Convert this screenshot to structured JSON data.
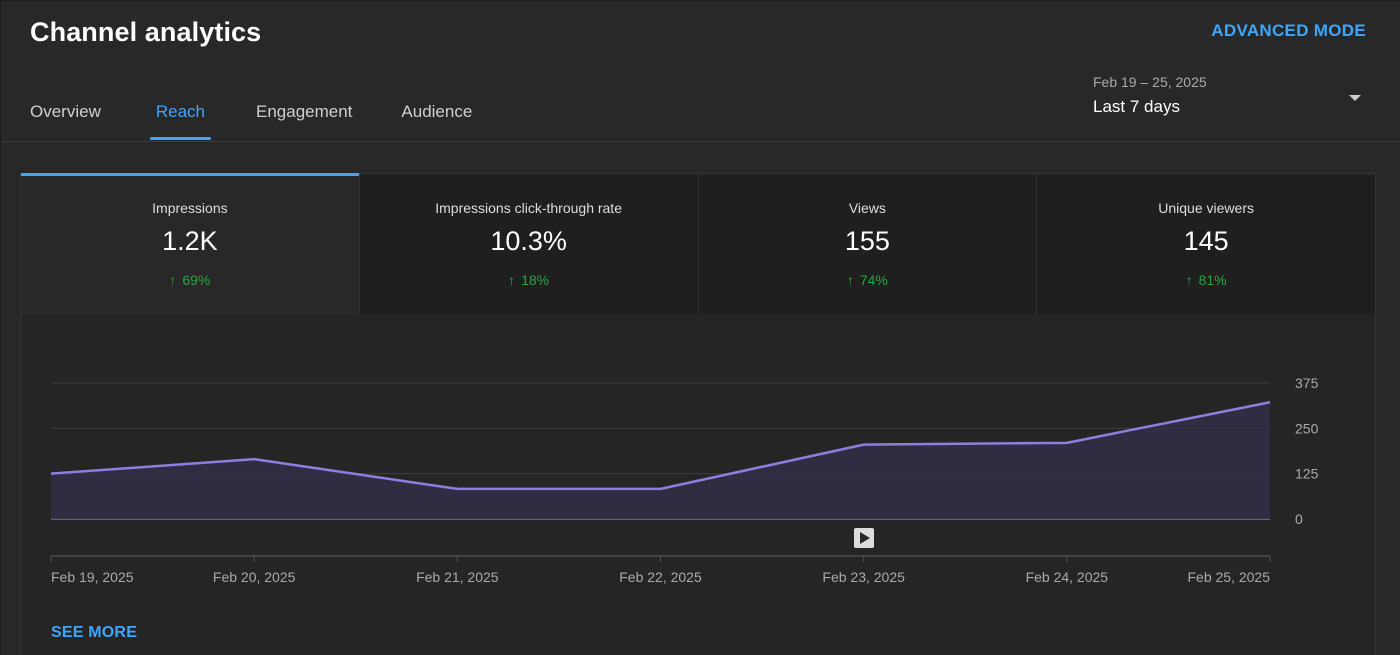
{
  "header": {
    "title": "Channel analytics",
    "advanced_mode": "ADVANCED MODE"
  },
  "tabs": [
    {
      "label": "Overview",
      "active": false
    },
    {
      "label": "Reach",
      "active": true
    },
    {
      "label": "Engagement",
      "active": false
    },
    {
      "label": "Audience",
      "active": false
    }
  ],
  "date_picker": {
    "range": "Feb 19 – 25, 2025",
    "label": "Last 7 days"
  },
  "metrics": [
    {
      "label": "Impressions",
      "value": "1.2K",
      "delta": "69%",
      "active": true
    },
    {
      "label": "Impressions click-through rate",
      "value": "10.3%",
      "delta": "18%",
      "active": false
    },
    {
      "label": "Views",
      "value": "155",
      "delta": "74%",
      "active": false
    },
    {
      "label": "Unique viewers",
      "value": "145",
      "delta": "81%",
      "active": false
    }
  ],
  "chart_data": {
    "type": "area",
    "x": [
      "Feb 19, 2025",
      "Feb 20, 2025",
      "Feb 21, 2025",
      "Feb 22, 2025",
      "Feb 23, 2025",
      "Feb 24, 2025",
      "Feb 25, 2025"
    ],
    "series": [
      {
        "values": [
          125,
          165,
          83,
          83,
          205,
          210,
          322
        ]
      }
    ],
    "y_ticks": [
      "0",
      "125",
      "250",
      "375"
    ],
    "ylim": [
      0,
      375
    ],
    "grid": true,
    "colors": {
      "line": "#8c7fe0",
      "fill": "#332f48"
    }
  },
  "footer": {
    "see_more": "SEE MORE"
  },
  "colors": {
    "accent": "#3ea6ff",
    "positive": "#2ba640",
    "background": "#282828"
  }
}
